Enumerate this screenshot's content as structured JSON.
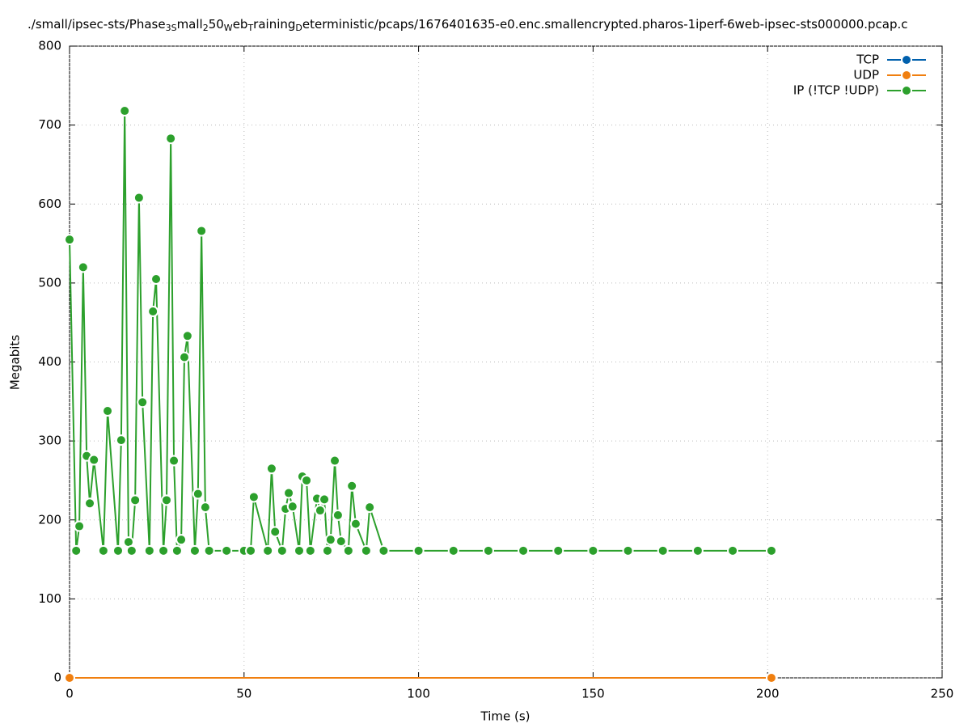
{
  "chart_data": {
    "type": "line",
    "title": [
      {
        "text": "./small/ipsec-sts/Phase"
      },
      {
        "text": "3S",
        "baseline": "sub"
      },
      {
        "text": "mall"
      },
      {
        "text": "2",
        "baseline": "sub"
      },
      {
        "text": "50"
      },
      {
        "text": "W",
        "baseline": "sub"
      },
      {
        "text": "eb"
      },
      {
        "text": "T",
        "baseline": "sub"
      },
      {
        "text": "raining"
      },
      {
        "text": "D",
        "baseline": "sub"
      },
      {
        "text": "eterministic/pcaps/1676401635-e0.enc.smallencrypted.pharos-1iperf-6web-ipsec-sts000000.pcap.c"
      }
    ],
    "x_label": "Time (s)",
    "y_label": "Megabits",
    "xlim": [
      0,
      250
    ],
    "xticks": [
      0,
      50,
      100,
      150,
      200,
      250
    ],
    "ylim": [
      0,
      800
    ],
    "yticks": [
      0,
      100,
      200,
      300,
      400,
      500,
      600,
      700,
      800
    ],
    "grid": true,
    "legend": "top-right",
    "series": [
      {
        "name": "TCP",
        "color": "#0060ad",
        "x": [
          0,
          201.1
        ],
        "values": [
          0,
          0
        ]
      },
      {
        "name": "UDP",
        "color": "#f07f0f",
        "x": [
          0,
          201.1
        ],
        "values": [
          0,
          0
        ]
      },
      {
        "name": "IP (!TCP  !UDP)",
        "color": "#2ca02c",
        "x": [
          0,
          1.9,
          2.8,
          3.9,
          4.9,
          5.8,
          7.0,
          9.7,
          10.9,
          13.9,
          14.8,
          15.8,
          16.9,
          17.8,
          18.8,
          19.9,
          20.9,
          22.9,
          23.9,
          24.8,
          26.9,
          27.8,
          29.0,
          29.9,
          30.8,
          32.0,
          32.9,
          33.8,
          35.9,
          36.8,
          37.8,
          38.9,
          40,
          45,
          50,
          51.9,
          52.8,
          56.8,
          57.9,
          58.9,
          60.9,
          61.9,
          62.8,
          63.9,
          65.8,
          66.7,
          67.9,
          69.0,
          70.9,
          71.8,
          73.0,
          73.9,
          74.8,
          76.0,
          76.9,
          77.8,
          79.9,
          80.9,
          82.0,
          85.0,
          86.0,
          90,
          100,
          110,
          120,
          130,
          140,
          150,
          160,
          170,
          180,
          190,
          201.1
        ],
        "values": [
          555,
          161,
          192,
          520,
          281,
          221,
          276,
          161,
          338,
          161,
          301,
          718,
          172,
          161,
          225,
          608,
          349,
          161,
          464,
          505,
          161,
          225,
          683,
          275,
          161,
          175,
          406,
          433,
          161,
          233,
          566,
          216,
          161,
          161,
          161,
          161,
          229,
          161,
          265,
          185,
          161,
          214,
          234,
          217,
          161,
          255,
          250,
          161,
          227,
          212,
          226,
          161,
          175,
          275,
          206,
          173,
          161,
          243,
          195,
          161,
          216,
          161,
          161,
          161,
          161,
          161,
          161,
          161,
          161,
          161,
          161,
          161,
          161
        ]
      }
    ]
  }
}
